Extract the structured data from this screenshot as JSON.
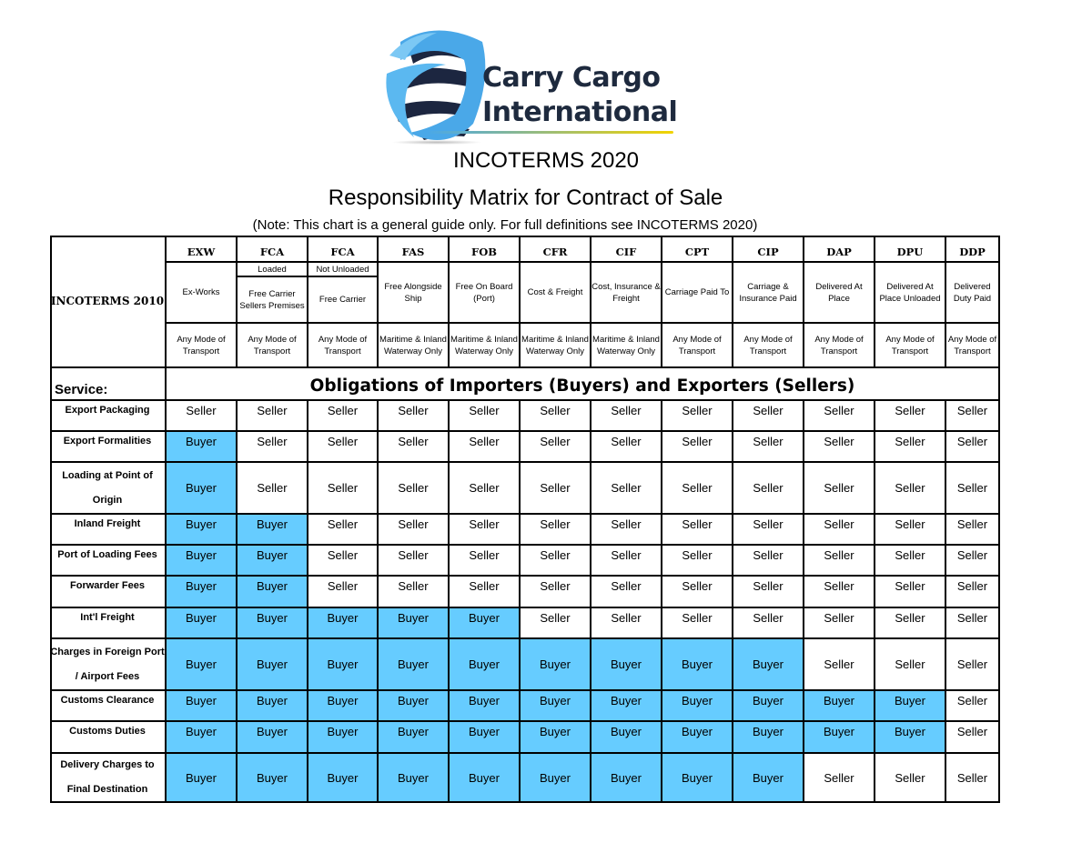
{
  "logo": {
    "line1": "Carry Cargo",
    "line2": "International",
    "colors": {
      "globe_blue": "#4aa8e8",
      "globe_dark": "#1c2640",
      "text": "#1e2a3e",
      "underline_yellow": "#f2d300"
    }
  },
  "title": "INCOTERMS 2020",
  "subtitle": "Responsibility Matrix for Contract of Sale",
  "note": "(Note: This chart is a general guide only. For full definitions see INCOTERMS 2020)",
  "header": {
    "corner_label": "INCOTERMS 2010",
    "service_label": "Service:",
    "banner": "Obligations of Importers (Buyers) and Exporters (Sellers)",
    "columns": [
      {
        "code": "EXW",
        "sub": "",
        "name": "Ex-Works",
        "mode": "Any Mode of Transport"
      },
      {
        "code": "FCA",
        "sub": "Loaded",
        "name": "Free Carrier Sellers Premises",
        "mode": "Any Mode of Transport"
      },
      {
        "code": "FCA",
        "sub": "Not Unloaded",
        "name": "Free Carrier",
        "mode": "Any Mode of Transport"
      },
      {
        "code": "FAS",
        "sub": "",
        "name": "Free Alongside Ship",
        "mode": "Maritime & Inland Waterway Only"
      },
      {
        "code": "FOB",
        "sub": "",
        "name": "Free On Board (Port)",
        "mode": "Maritime & Inland Waterway Only"
      },
      {
        "code": "CFR",
        "sub": "",
        "name": "Cost & Freight",
        "mode": "Maritime & Inland Waterway Only"
      },
      {
        "code": "CIF",
        "sub": "",
        "name": "Cost, Insurance & Freight",
        "mode": "Maritime & Inland Waterway Only"
      },
      {
        "code": "CPT",
        "sub": "",
        "name": "Carriage Paid To",
        "mode": "Any Mode of Transport"
      },
      {
        "code": "CIP",
        "sub": "",
        "name": "Carriage & Insurance Paid",
        "mode": "Any Mode of Transport"
      },
      {
        "code": "DAP",
        "sub": "",
        "name": "Delivered At Place",
        "mode": "Any Mode of Transport"
      },
      {
        "code": "DPU",
        "sub": "",
        "name": "Delivered At Place Unloaded",
        "mode": "Any Mode of Transport"
      },
      {
        "code": "DDP",
        "sub": "",
        "name": "Delivered Duty Paid",
        "mode": "Any Mode of Transport"
      }
    ]
  },
  "colors": {
    "buyer_fill": "#66ccff",
    "seller_fill": "#ffffff"
  },
  "rows": [
    {
      "service": "Export Packaging",
      "values": [
        "Seller",
        "Seller",
        "Seller",
        "Seller",
        "Seller",
        "Seller",
        "Seller",
        "Seller",
        "Seller",
        "Seller",
        "Seller",
        "Seller"
      ]
    },
    {
      "service": "Export Formalities",
      "values": [
        "Buyer",
        "Seller",
        "Seller",
        "Seller",
        "Seller",
        "Seller",
        "Seller",
        "Seller",
        "Seller",
        "Seller",
        "Seller",
        "Seller"
      ]
    },
    {
      "service": "Loading at Point of Origin",
      "values": [
        "Buyer",
        "Seller",
        "Seller",
        "Seller",
        "Seller",
        "Seller",
        "Seller",
        "Seller",
        "Seller",
        "Seller",
        "Seller",
        "Seller"
      ]
    },
    {
      "service": "Inland Freight",
      "values": [
        "Buyer",
        "Buyer",
        "Seller",
        "Seller",
        "Seller",
        "Seller",
        "Seller",
        "Seller",
        "Seller",
        "Seller",
        "Seller",
        "Seller"
      ]
    },
    {
      "service": "Port of Loading Fees",
      "values": [
        "Buyer",
        "Buyer",
        "Seller",
        "Seller",
        "Seller",
        "Seller",
        "Seller",
        "Seller",
        "Seller",
        "Seller",
        "Seller",
        "Seller"
      ]
    },
    {
      "service": "Forwarder Fees",
      "values": [
        "Buyer",
        "Buyer",
        "Seller",
        "Seller",
        "Seller",
        "Seller",
        "Seller",
        "Seller",
        "Seller",
        "Seller",
        "Seller",
        "Seller"
      ]
    },
    {
      "service": "Int'l Freight",
      "values": [
        "Buyer",
        "Buyer",
        "Buyer",
        "Buyer",
        "Buyer",
        "Seller",
        "Seller",
        "Seller",
        "Seller",
        "Seller",
        "Seller",
        "Seller"
      ]
    },
    {
      "service": "Charges in Foreign Port / Airport Fees",
      "values": [
        "Buyer",
        "Buyer",
        "Buyer",
        "Buyer",
        "Buyer",
        "Buyer",
        "Buyer",
        "Buyer",
        "Buyer",
        "Seller",
        "Seller",
        "Seller"
      ]
    },
    {
      "service": "Customs Clearance",
      "values": [
        "Buyer",
        "Buyer",
        "Buyer",
        "Buyer",
        "Buyer",
        "Buyer",
        "Buyer",
        "Buyer",
        "Buyer",
        "Buyer",
        "Buyer",
        "Seller"
      ]
    },
    {
      "service": "Customs Duties",
      "values": [
        "Buyer",
        "Buyer",
        "Buyer",
        "Buyer",
        "Buyer",
        "Buyer",
        "Buyer",
        "Buyer",
        "Buyer",
        "Buyer",
        "Buyer",
        "Seller"
      ]
    },
    {
      "service": "Delivery Charges to Final Destination",
      "values": [
        "Buyer",
        "Buyer",
        "Buyer",
        "Buyer",
        "Buyer",
        "Buyer",
        "Buyer",
        "Buyer",
        "Buyer",
        "Seller",
        "Seller",
        "Seller"
      ]
    }
  ]
}
